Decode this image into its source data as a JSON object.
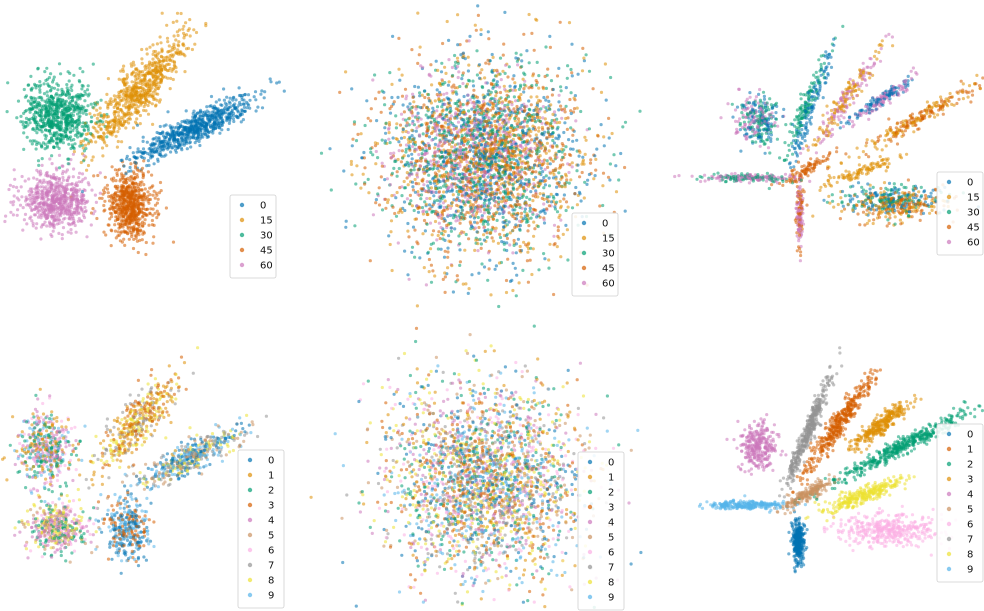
{
  "colors": {
    "c0": "#0173B2",
    "c1": "#DE8F05",
    "c2": "#029E73",
    "c3": "#D55E00",
    "c4": "#CC78BC",
    "c5": "#CA9161",
    "c6": "#FBAFE4",
    "c7": "#949494",
    "c8": "#ECE133",
    "c9": "#56B4E9"
  },
  "chart_data": [
    {
      "type": "scatter",
      "panel": "top-left",
      "legend": {
        "placement": "lower-right",
        "labels": [
          "0",
          "15",
          "30",
          "45",
          "60"
        ]
      },
      "series": [
        {
          "label": "0",
          "color": "c0",
          "clusters": [
            {
              "x": 195,
              "y": 128,
              "sx": 32,
              "sy": 7,
              "rot": -28,
              "n": 700
            }
          ]
        },
        {
          "label": "15",
          "color": "c1",
          "clusters": [
            {
              "x": 138,
              "y": 92,
              "sx": 10,
              "sy": 36,
              "rot": 40,
              "n": 700
            }
          ]
        },
        {
          "label": "30",
          "color": "c2",
          "clusters": [
            {
              "x": 58,
              "y": 116,
              "sx": 17,
              "sy": 18,
              "rot": 0,
              "n": 700
            }
          ]
        },
        {
          "label": "45",
          "color": "c3",
          "clusters": [
            {
              "x": 130,
              "y": 205,
              "sx": 12,
              "sy": 17,
              "rot": 0,
              "n": 650
            }
          ]
        },
        {
          "label": "60",
          "color": "c4",
          "clusters": [
            {
              "x": 56,
              "y": 200,
              "sx": 17,
              "sy": 13,
              "rot": 0,
              "n": 650
            }
          ]
        }
      ]
    },
    {
      "type": "scatter",
      "panel": "top-middle",
      "legend": {
        "placement": "lower-right",
        "labels": [
          "0",
          "15",
          "30",
          "45",
          "60"
        ]
      },
      "series": [
        {
          "label": "0",
          "color": "c0",
          "clusters": [
            {
              "x": 485,
              "y": 160,
              "sx": 50,
              "sy": 48,
              "rot": 0,
              "n": 700
            }
          ]
        },
        {
          "label": "15",
          "color": "c1",
          "clusters": [
            {
              "x": 485,
              "y": 160,
              "sx": 50,
              "sy": 48,
              "rot": 0,
              "n": 700
            }
          ]
        },
        {
          "label": "30",
          "color": "c2",
          "clusters": [
            {
              "x": 485,
              "y": 160,
              "sx": 50,
              "sy": 48,
              "rot": 0,
              "n": 700
            }
          ]
        },
        {
          "label": "45",
          "color": "c3",
          "clusters": [
            {
              "x": 485,
              "y": 160,
              "sx": 50,
              "sy": 48,
              "rot": 0,
              "n": 700
            }
          ]
        },
        {
          "label": "60",
          "color": "c4",
          "clusters": [
            {
              "x": 475,
              "y": 155,
              "sx": 40,
              "sy": 38,
              "rot": 0,
              "n": 600
            }
          ]
        }
      ]
    },
    {
      "type": "scatter",
      "panel": "top-right",
      "legend": {
        "placement": "right",
        "labels": [
          "0",
          "15",
          "30",
          "45",
          "60"
        ]
      },
      "series": [
        {
          "label": "0",
          "color": "c0",
          "clusters": [
            {
              "x": 810,
              "y": 110,
              "sx": 3,
              "sy": 30,
              "rot": 20,
              "n": 120
            },
            {
              "x": 900,
              "y": 200,
              "sx": 25,
              "sy": 8,
              "rot": 0,
              "n": 120
            },
            {
              "x": 760,
              "y": 120,
              "sx": 10,
              "sy": 12,
              "rot": 0,
              "n": 100
            },
            {
              "x": 880,
              "y": 100,
              "sx": 3,
              "sy": 20,
              "rot": 55,
              "n": 100
            }
          ]
        },
        {
          "label": "15",
          "color": "c1",
          "clusters": [
            {
              "x": 845,
              "y": 100,
              "sx": 4,
              "sy": 32,
              "rot": 35,
              "n": 120
            },
            {
              "x": 890,
              "y": 205,
              "sx": 25,
              "sy": 8,
              "rot": 0,
              "n": 120
            },
            {
              "x": 860,
              "y": 172,
              "sx": 3,
              "sy": 20,
              "rot": 70,
              "n": 100
            },
            {
              "x": 915,
              "y": 120,
              "sx": 4,
              "sy": 40,
              "rot": 60,
              "n": 120
            }
          ]
        },
        {
          "label": "30",
          "color": "c2",
          "clusters": [
            {
              "x": 805,
              "y": 108,
              "sx": 3,
              "sy": 30,
              "rot": 22,
              "n": 120
            },
            {
              "x": 760,
              "y": 122,
              "sx": 10,
              "sy": 12,
              "rot": 0,
              "n": 100
            },
            {
              "x": 890,
              "y": 200,
              "sx": 25,
              "sy": 8,
              "rot": 0,
              "n": 100
            },
            {
              "x": 750,
              "y": 178,
              "sx": 25,
              "sy": 2,
              "rot": 0,
              "n": 80
            }
          ]
        },
        {
          "label": "45",
          "color": "c3",
          "clusters": [
            {
              "x": 900,
              "y": 205,
              "sx": 25,
              "sy": 8,
              "rot": 0,
              "n": 120
            },
            {
              "x": 925,
              "y": 115,
              "sx": 4,
              "sy": 40,
              "rot": 60,
              "n": 120
            },
            {
              "x": 800,
              "y": 210,
              "sx": 2,
              "sy": 18,
              "rot": 0,
              "n": 60
            },
            {
              "x": 808,
              "y": 168,
              "sx": 3,
              "sy": 15,
              "rot": 60,
              "n": 80
            }
          ]
        },
        {
          "label": "60",
          "color": "c4",
          "clusters": [
            {
              "x": 750,
              "y": 178,
              "sx": 25,
              "sy": 2,
              "rot": 0,
              "n": 120
            },
            {
              "x": 755,
              "y": 120,
              "sx": 10,
              "sy": 12,
              "rot": 0,
              "n": 100
            },
            {
              "x": 885,
              "y": 97,
              "sx": 3,
              "sy": 18,
              "rot": 55,
              "n": 100
            },
            {
              "x": 800,
              "y": 215,
              "sx": 2,
              "sy": 18,
              "rot": 0,
              "n": 80
            },
            {
              "x": 850,
              "y": 95,
              "sx": 4,
              "sy": 30,
              "rot": 35,
              "n": 100
            }
          ]
        }
      ]
    },
    {
      "type": "scatter",
      "panel": "bottom-left",
      "legend": {
        "placement": "right",
        "labels": [
          "0",
          "1",
          "2",
          "3",
          "4",
          "5",
          "6",
          "7",
          "8",
          "9"
        ]
      },
      "series": [
        {
          "label": "0",
          "color": "c0",
          "clusters": [
            {
              "x": 190,
              "y": 458,
              "sx": 30,
              "sy": 7,
              "rot": -28,
              "n": 120
            },
            {
              "x": 127,
              "y": 530,
              "sx": 11,
              "sy": 14,
              "rot": 0,
              "n": 120
            }
          ]
        },
        {
          "label": "1",
          "color": "c1",
          "clusters": [
            {
              "x": 135,
              "y": 425,
              "sx": 10,
              "sy": 32,
              "rot": 40,
              "n": 140
            },
            {
              "x": 45,
              "y": 450,
              "sx": 14,
              "sy": 18,
              "rot": 0,
              "n": 120
            }
          ]
        },
        {
          "label": "2",
          "color": "c2",
          "clusters": [
            {
              "x": 45,
              "y": 452,
              "sx": 14,
              "sy": 18,
              "rot": 0,
              "n": 120
            },
            {
              "x": 60,
              "y": 530,
              "sx": 15,
              "sy": 12,
              "rot": 0,
              "n": 100
            }
          ]
        },
        {
          "label": "3",
          "color": "c3",
          "clusters": [
            {
              "x": 135,
              "y": 425,
              "sx": 10,
              "sy": 32,
              "rot": 40,
              "n": 100
            },
            {
              "x": 127,
              "y": 530,
              "sx": 11,
              "sy": 14,
              "rot": 0,
              "n": 100
            }
          ]
        },
        {
          "label": "4",
          "color": "c4",
          "clusters": [
            {
              "x": 45,
              "y": 450,
              "sx": 14,
              "sy": 18,
              "rot": 0,
              "n": 100
            },
            {
              "x": 58,
              "y": 528,
              "sx": 15,
              "sy": 12,
              "rot": 0,
              "n": 110
            }
          ]
        },
        {
          "label": "5",
          "color": "c5",
          "clusters": [
            {
              "x": 190,
              "y": 458,
              "sx": 30,
              "sy": 7,
              "rot": -28,
              "n": 100
            },
            {
              "x": 58,
              "y": 528,
              "sx": 15,
              "sy": 12,
              "rot": 0,
              "n": 80
            }
          ]
        },
        {
          "label": "6",
          "color": "c6",
          "clusters": [
            {
              "x": 45,
              "y": 450,
              "sx": 14,
              "sy": 18,
              "rot": 0,
              "n": 80
            },
            {
              "x": 60,
              "y": 528,
              "sx": 15,
              "sy": 12,
              "rot": 0,
              "n": 80
            }
          ]
        },
        {
          "label": "7",
          "color": "c7",
          "clusters": [
            {
              "x": 135,
              "y": 425,
              "sx": 10,
              "sy": 32,
              "rot": 40,
              "n": 80
            },
            {
              "x": 190,
              "y": 458,
              "sx": 30,
              "sy": 7,
              "rot": -28,
              "n": 80
            }
          ]
        },
        {
          "label": "8",
          "color": "c8",
          "clusters": [
            {
              "x": 135,
              "y": 425,
              "sx": 10,
              "sy": 32,
              "rot": 40,
              "n": 100
            },
            {
              "x": 58,
              "y": 528,
              "sx": 15,
              "sy": 12,
              "rot": 0,
              "n": 100
            },
            {
              "x": 190,
              "y": 458,
              "sx": 30,
              "sy": 7,
              "rot": -28,
              "n": 80
            }
          ]
        },
        {
          "label": "9",
          "color": "c9",
          "clusters": [
            {
              "x": 190,
              "y": 458,
              "sx": 30,
              "sy": 7,
              "rot": -28,
              "n": 120
            },
            {
              "x": 127,
              "y": 530,
              "sx": 11,
              "sy": 14,
              "rot": 0,
              "n": 120
            },
            {
              "x": 45,
              "y": 450,
              "sx": 14,
              "sy": 18,
              "rot": 0,
              "n": 80
            }
          ]
        }
      ]
    },
    {
      "type": "scatter",
      "panel": "bottom-middle",
      "legend": {
        "placement": "lower-right",
        "labels": [
          "0",
          "1",
          "2",
          "3",
          "4",
          "5",
          "6",
          "7",
          "8",
          "9"
        ]
      },
      "series": [
        {
          "label": "0",
          "color": "c0",
          "clusters": [
            {
              "x": 485,
              "y": 480,
              "sx": 48,
              "sy": 48,
              "rot": 0,
              "n": 300
            }
          ]
        },
        {
          "label": "1",
          "color": "c1",
          "clusters": [
            {
              "x": 485,
              "y": 480,
              "sx": 48,
              "sy": 48,
              "rot": 0,
              "n": 300
            }
          ]
        },
        {
          "label": "2",
          "color": "c2",
          "clusters": [
            {
              "x": 485,
              "y": 480,
              "sx": 48,
              "sy": 48,
              "rot": 0,
              "n": 250
            }
          ]
        },
        {
          "label": "3",
          "color": "c3",
          "clusters": [
            {
              "x": 485,
              "y": 480,
              "sx": 48,
              "sy": 48,
              "rot": 0,
              "n": 250
            }
          ]
        },
        {
          "label": "4",
          "color": "c4",
          "clusters": [
            {
              "x": 485,
              "y": 480,
              "sx": 48,
              "sy": 48,
              "rot": 0,
              "n": 250
            }
          ]
        },
        {
          "label": "5",
          "color": "c5",
          "clusters": [
            {
              "x": 485,
              "y": 480,
              "sx": 48,
              "sy": 48,
              "rot": 0,
              "n": 250
            }
          ]
        },
        {
          "label": "6",
          "color": "c6",
          "clusters": [
            {
              "x": 485,
              "y": 480,
              "sx": 48,
              "sy": 48,
              "rot": 0,
              "n": 250
            }
          ]
        },
        {
          "label": "7",
          "color": "c7",
          "clusters": [
            {
              "x": 485,
              "y": 480,
              "sx": 48,
              "sy": 48,
              "rot": 0,
              "n": 250
            }
          ]
        },
        {
          "label": "8",
          "color": "c8",
          "clusters": [
            {
              "x": 485,
              "y": 480,
              "sx": 48,
              "sy": 48,
              "rot": 0,
              "n": 300
            }
          ]
        },
        {
          "label": "9",
          "color": "c9",
          "clusters": [
            {
              "x": 485,
              "y": 480,
              "sx": 48,
              "sy": 48,
              "rot": 0,
              "n": 300
            }
          ]
        }
      ]
    },
    {
      "type": "scatter",
      "panel": "bottom-right",
      "legend": {
        "placement": "right",
        "labels": [
          "0",
          "1",
          "2",
          "3",
          "4",
          "5",
          "6",
          "7",
          "8",
          "9"
        ]
      },
      "series": [
        {
          "label": "0",
          "color": "c0",
          "clusters": [
            {
              "x": 798,
              "y": 542,
              "sx": 3,
              "sy": 11,
              "rot": 0,
              "n": 300
            }
          ]
        },
        {
          "label": "1",
          "color": "c3",
          "clusters": [
            {
              "x": 840,
              "y": 422,
              "sx": 4,
              "sy": 28,
              "rot": 35,
              "n": 400
            }
          ]
        },
        {
          "label": "2",
          "color": "c2",
          "clusters": [
            {
              "x": 905,
              "y": 445,
              "sx": 4,
              "sy": 40,
              "rot": 62,
              "n": 450
            }
          ]
        },
        {
          "label": "3",
          "color": "c1",
          "clusters": [
            {
              "x": 882,
              "y": 424,
              "sx": 4,
              "sy": 17,
              "rot": 52,
              "n": 300
            }
          ]
        },
        {
          "label": "4",
          "color": "c4",
          "clusters": [
            {
              "x": 758,
              "y": 447,
              "sx": 10,
              "sy": 12,
              "rot": 0,
              "n": 300
            }
          ]
        },
        {
          "label": "5",
          "color": "c5",
          "clusters": [
            {
              "x": 806,
              "y": 495,
              "sx": 3,
              "sy": 14,
              "rot": 60,
              "n": 200
            }
          ]
        },
        {
          "label": "6",
          "color": "c6",
          "clusters": [
            {
              "x": 890,
              "y": 530,
              "sx": 25,
              "sy": 8,
              "rot": 0,
              "n": 400
            }
          ]
        },
        {
          "label": "7",
          "color": "c7",
          "clusters": [
            {
              "x": 808,
              "y": 432,
              "sx": 3,
              "sy": 28,
              "rot": 22,
              "n": 400
            }
          ]
        },
        {
          "label": "8",
          "color": "c8",
          "clusters": [
            {
              "x": 865,
              "y": 495,
              "sx": 4,
              "sy": 22,
              "rot": 70,
              "n": 300
            }
          ]
        },
        {
          "label": "9",
          "color": "c9",
          "clusters": [
            {
              "x": 748,
              "y": 505,
              "sx": 22,
              "sy": 2,
              "rot": 0,
              "n": 250
            }
          ]
        }
      ]
    }
  ]
}
